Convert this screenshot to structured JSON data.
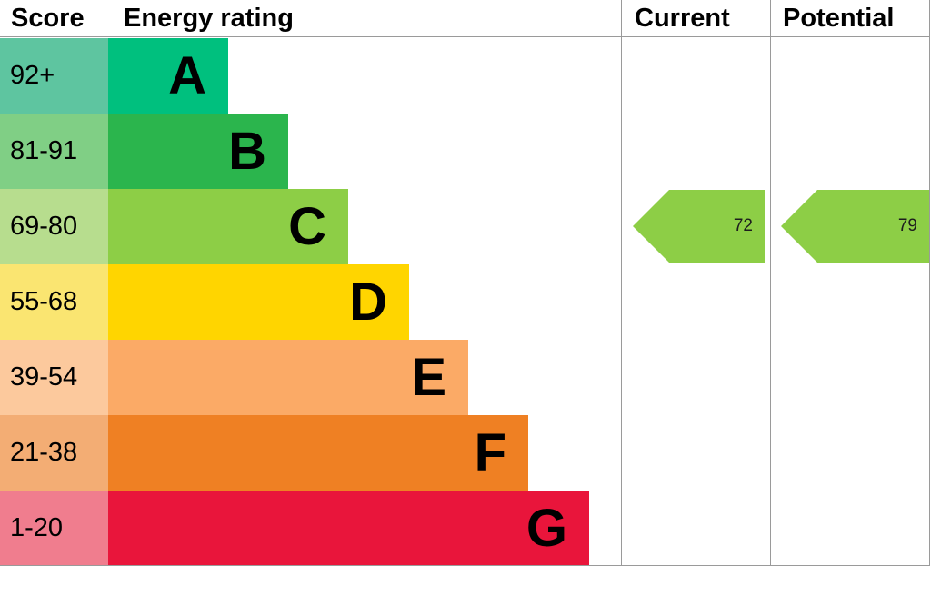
{
  "header": {
    "score": "Score",
    "energy_rating": "Energy rating",
    "current": "Current",
    "potential": "Potential"
  },
  "chart_data": {
    "type": "bar",
    "title": "Energy rating",
    "description": "EPC energy efficiency rating chart with score bands A-G and current/potential rating arrows",
    "bands": [
      {
        "letter": "A",
        "score_range": "92+",
        "bar_color": "#00c07e",
        "score_cell_color": "#5ec5a0"
      },
      {
        "letter": "B",
        "score_range": "81-91",
        "bar_color": "#2bb54d",
        "score_cell_color": "#80cf85"
      },
      {
        "letter": "C",
        "score_range": "69-80",
        "bar_color": "#8dce46",
        "score_cell_color": "#b7dd8e"
      },
      {
        "letter": "D",
        "score_range": "55-68",
        "bar_color": "#ffd500",
        "score_cell_color": "#fae571"
      },
      {
        "letter": "E",
        "score_range": "39-54",
        "bar_color": "#fbaa66",
        "score_cell_color": "#fcc99d"
      },
      {
        "letter": "F",
        "score_range": "21-38",
        "bar_color": "#ef8023",
        "score_cell_color": "#f3ad74"
      },
      {
        "letter": "G",
        "score_range": "1-20",
        "bar_color": "#e9153b",
        "score_cell_color": "#f07d8e"
      }
    ],
    "current": {
      "value": "72",
      "band": "C",
      "arrow_color": "#8dce46"
    },
    "potential": {
      "value": "79",
      "band": "C",
      "arrow_color": "#8dce46"
    }
  }
}
